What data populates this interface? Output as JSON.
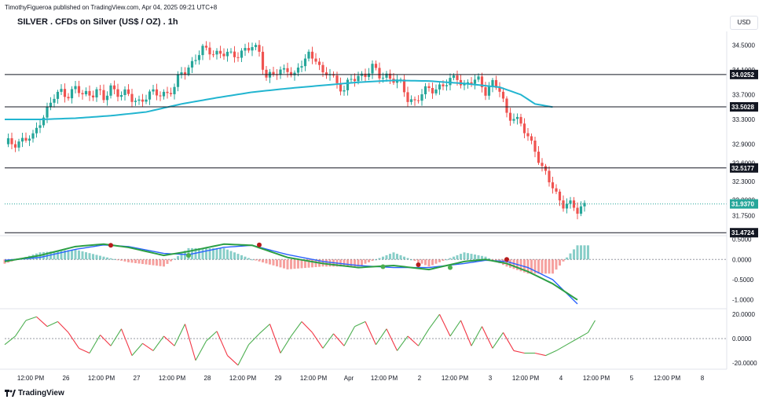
{
  "header": {
    "publisher_line": "TimothyFigueroa published on TradingView.com, Apr 04, 2025 09:21 UTC+8",
    "symbol_title": "SILVER . CFDs on Silver (US$ / OZ) . 1h",
    "currency_button": "USD"
  },
  "footer": {
    "brand": "TradingView"
  },
  "colors": {
    "bull": "#26a69a",
    "bear": "#ef5350",
    "ma": "#22b5d0",
    "hline": "#131722",
    "macd_fast": "#2c9f45",
    "macd_slow": "#2962ff",
    "osc_up": "#4caf50",
    "osc_down": "#f23645"
  },
  "chart_data": [
    {
      "type": "candlestick",
      "title": "SILVER . CFDs on Silver (US$ / OZ) . 1h",
      "x_ticks": [
        "12:00 PM",
        "26",
        "12:00 PM",
        "27",
        "12:00 PM",
        "28",
        "12:00 PM",
        "29",
        "12:00 PM",
        "Apr",
        "12:00 PM",
        "2",
        "12:00 PM",
        "3",
        "12:00 PM",
        "4",
        "12:00 PM",
        "5",
        "12:00 PM",
        "8"
      ],
      "y_ticks": [
        "34.5000",
        "34.1000",
        "33.7000",
        "33.3000",
        "32.9000",
        "32.6000",
        "32.3000",
        "32.0000",
        "31.7500"
      ],
      "ylim": [
        31.45,
        34.72
      ],
      "price_levels": [
        {
          "label": "34.0252",
          "value": 34.0252
        },
        {
          "label": "33.5028",
          "value": 33.5028
        },
        {
          "label": "32.5177",
          "value": 32.5177
        },
        {
          "label": "31.4724",
          "value": 31.4724
        }
      ],
      "last_price": {
        "label": "31.9370",
        "value": 31.937
      },
      "close_path": [
        [
          0,
          32.9
        ],
        [
          4,
          32.95
        ],
        [
          8,
          33.0
        ],
        [
          10,
          33.3
        ],
        [
          12,
          33.45
        ],
        [
          14,
          33.65
        ],
        [
          16,
          33.75
        ],
        [
          18,
          33.72
        ],
        [
          20,
          33.78
        ],
        [
          22,
          33.7
        ],
        [
          24,
          33.72
        ],
        [
          26,
          33.78
        ],
        [
          28,
          33.6
        ],
        [
          30,
          33.82
        ],
        [
          32,
          33.75
        ],
        [
          34,
          33.7
        ],
        [
          36,
          33.62
        ],
        [
          38,
          33.6
        ],
        [
          40,
          33.68
        ],
        [
          44,
          33.72
        ],
        [
          46,
          33.74
        ],
        [
          48,
          33.8
        ],
        [
          50,
          34.05
        ],
        [
          52,
          34.15
        ],
        [
          54,
          34.3
        ],
        [
          56,
          34.4
        ],
        [
          58,
          34.42
        ],
        [
          60,
          34.38
        ],
        [
          62,
          34.35
        ],
        [
          64,
          34.32
        ],
        [
          66,
          34.38
        ],
        [
          68,
          34.42
        ],
        [
          70,
          34.45
        ],
        [
          72,
          34.4
        ],
        [
          74,
          34.0
        ],
        [
          76,
          34.02
        ],
        [
          78,
          34.05
        ],
        [
          80,
          34.15
        ],
        [
          82,
          34.0
        ],
        [
          84,
          34.18
        ],
        [
          86,
          34.35
        ],
        [
          88,
          34.32
        ],
        [
          90,
          33.98
        ],
        [
          92,
          34.05
        ],
        [
          94,
          33.9
        ],
        [
          96,
          33.78
        ],
        [
          98,
          33.92
        ],
        [
          100,
          34.0
        ],
        [
          102,
          34.05
        ],
        [
          104,
          34.12
        ],
        [
          106,
          34.0
        ],
        [
          108,
          34.02
        ],
        [
          110,
          33.95
        ],
        [
          112,
          33.85
        ],
        [
          114,
          33.65
        ],
        [
          116,
          33.6
        ],
        [
          118,
          33.7
        ],
        [
          120,
          33.78
        ],
        [
          122,
          33.82
        ],
        [
          124,
          33.85
        ],
        [
          126,
          33.9
        ],
        [
          128,
          34.0
        ],
        [
          130,
          33.85
        ],
        [
          132,
          33.9
        ],
        [
          134,
          33.92
        ],
        [
          136,
          33.78
        ],
        [
          138,
          33.88
        ],
        [
          140,
          33.75
        ],
        [
          142,
          33.4
        ],
        [
          144,
          33.35
        ],
        [
          146,
          33.2
        ],
        [
          148,
          33.0
        ],
        [
          150,
          32.85
        ],
        [
          152,
          32.5
        ],
        [
          154,
          32.3
        ],
        [
          156,
          32.1
        ],
        [
          158,
          31.95
        ],
        [
          160,
          31.9
        ],
        [
          162,
          31.82
        ],
        [
          164,
          31.95
        ]
      ],
      "moving_average": [
        [
          0,
          33.3
        ],
        [
          10,
          33.3
        ],
        [
          20,
          33.32
        ],
        [
          30,
          33.36
        ],
        [
          40,
          33.42
        ],
        [
          50,
          33.55
        ],
        [
          60,
          33.65
        ],
        [
          70,
          33.74
        ],
        [
          80,
          33.8
        ],
        [
          90,
          33.85
        ],
        [
          100,
          33.9
        ],
        [
          110,
          33.93
        ],
        [
          120,
          33.92
        ],
        [
          130,
          33.88
        ],
        [
          140,
          33.82
        ],
        [
          146,
          33.7
        ],
        [
          150,
          33.55
        ],
        [
          155,
          33.5
        ]
      ]
    },
    {
      "type": "line",
      "title": "",
      "y_ticks": [
        "0.5000",
        "0.0000",
        "-0.5000",
        "-1.0000"
      ],
      "ylim": [
        -1.2,
        0.55
      ],
      "series": [
        {
          "values": [
            [
              0,
              -0.05
            ],
            [
              10,
              0.1
            ],
            [
              20,
              0.32
            ],
            [
              28,
              0.38
            ],
            [
              35,
              0.3
            ],
            [
              45,
              0.1
            ],
            [
              52,
              0.2
            ],
            [
              62,
              0.38
            ],
            [
              70,
              0.35
            ],
            [
              80,
              0.05
            ],
            [
              90,
              -0.1
            ],
            [
              100,
              -0.2
            ],
            [
              110,
              -0.15
            ],
            [
              120,
              -0.25
            ],
            [
              130,
              -0.05
            ],
            [
              136,
              0.0
            ],
            [
              142,
              -0.1
            ],
            [
              148,
              -0.3
            ],
            [
              155,
              -0.6
            ],
            [
              162,
              -1.0
            ]
          ]
        },
        {
          "values": [
            [
              0,
              -0.02
            ],
            [
              10,
              0.05
            ],
            [
              20,
              0.25
            ],
            [
              28,
              0.36
            ],
            [
              35,
              0.32
            ],
            [
              45,
              0.15
            ],
            [
              52,
              0.12
            ],
            [
              62,
              0.3
            ],
            [
              70,
              0.35
            ],
            [
              80,
              0.12
            ],
            [
              90,
              -0.05
            ],
            [
              100,
              -0.15
            ],
            [
              110,
              -0.2
            ],
            [
              120,
              -0.2
            ],
            [
              130,
              -0.1
            ],
            [
              136,
              -0.02
            ],
            [
              142,
              -0.05
            ],
            [
              148,
              -0.2
            ],
            [
              155,
              -0.5
            ],
            [
              162,
              -1.1
            ]
          ]
        }
      ],
      "cross_markers": [
        [
          30,
          0.35,
          "bear"
        ],
        [
          52,
          0.1,
          "bull"
        ],
        [
          72,
          0.36,
          "bear"
        ],
        [
          107,
          -0.18,
          "bull"
        ],
        [
          117,
          -0.13,
          "bear"
        ],
        [
          126,
          -0.2,
          "bull"
        ],
        [
          142,
          0.0,
          "bear"
        ]
      ]
    },
    {
      "type": "line",
      "title": "",
      "y_ticks": [
        "20.0000",
        "0.0000",
        "-20.0000"
      ],
      "ylim": [
        -24,
        24
      ],
      "values": [
        [
          0,
          -5
        ],
        [
          3,
          2
        ],
        [
          6,
          15
        ],
        [
          9,
          18
        ],
        [
          12,
          10
        ],
        [
          15,
          14
        ],
        [
          18,
          5
        ],
        [
          21,
          -8
        ],
        [
          24,
          -12
        ],
        [
          27,
          3
        ],
        [
          30,
          -6
        ],
        [
          33,
          8
        ],
        [
          36,
          -14
        ],
        [
          39,
          -4
        ],
        [
          42,
          -10
        ],
        [
          45,
          2
        ],
        [
          48,
          -6
        ],
        [
          51,
          12
        ],
        [
          54,
          -18
        ],
        [
          57,
          -2
        ],
        [
          60,
          6
        ],
        [
          63,
          -14
        ],
        [
          66,
          -22
        ],
        [
          69,
          -5
        ],
        [
          72,
          4
        ],
        [
          75,
          12
        ],
        [
          78,
          -12
        ],
        [
          81,
          2
        ],
        [
          84,
          14
        ],
        [
          87,
          5
        ],
        [
          90,
          -8
        ],
        [
          93,
          4
        ],
        [
          96,
          -6
        ],
        [
          99,
          10
        ],
        [
          102,
          14
        ],
        [
          105,
          -5
        ],
        [
          108,
          8
        ],
        [
          111,
          -10
        ],
        [
          114,
          2
        ],
        [
          117,
          -6
        ],
        [
          120,
          8
        ],
        [
          123,
          20
        ],
        [
          126,
          2
        ],
        [
          129,
          15
        ],
        [
          132,
          -6
        ],
        [
          135,
          10
        ],
        [
          138,
          -8
        ],
        [
          141,
          5
        ],
        [
          144,
          -10
        ],
        [
          147,
          -12
        ],
        [
          150,
          -12
        ],
        [
          153,
          -14
        ],
        [
          156,
          -10
        ],
        [
          159,
          -5
        ],
        [
          162,
          0
        ],
        [
          165,
          5
        ],
        [
          167,
          15
        ]
      ]
    }
  ]
}
